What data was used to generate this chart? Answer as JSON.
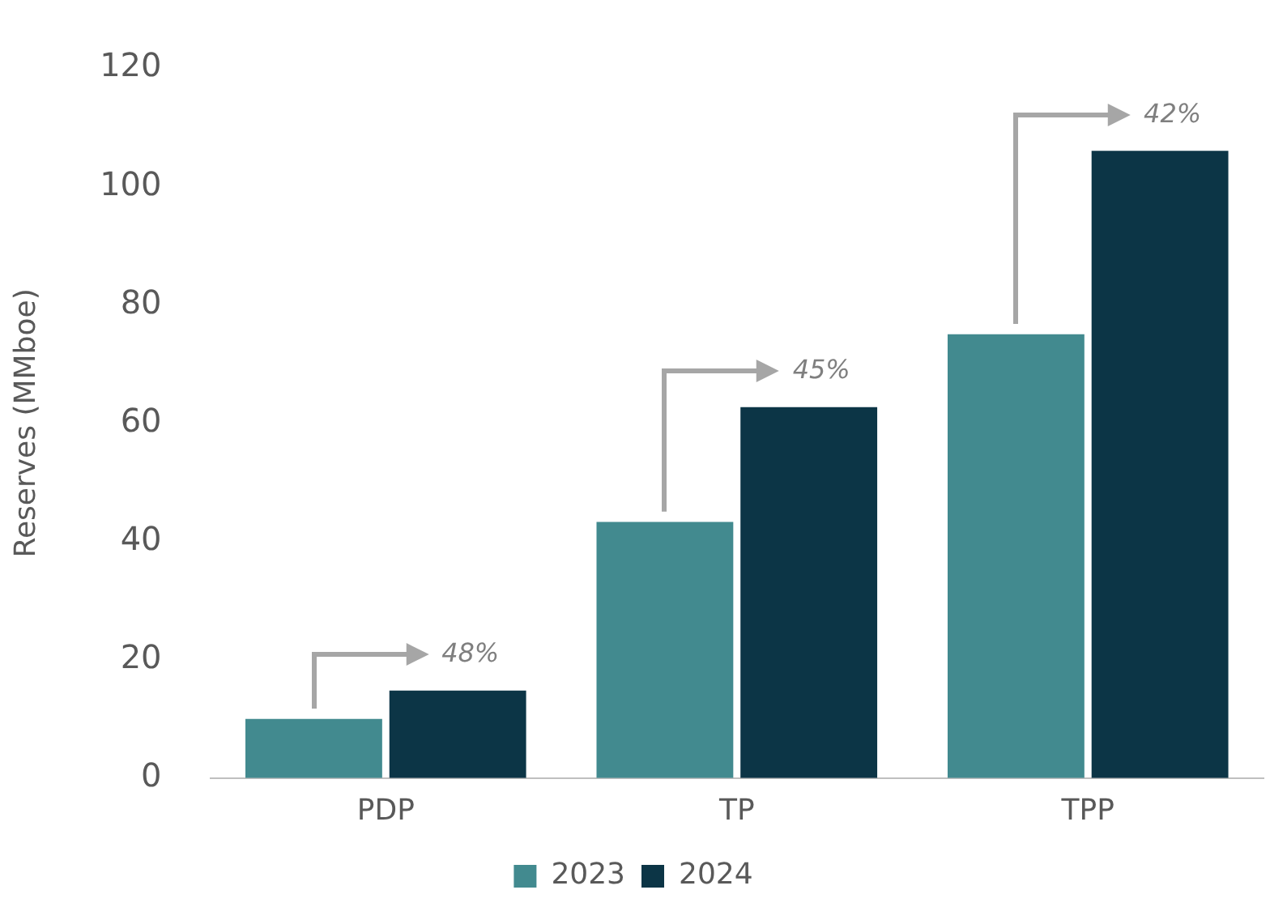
{
  "chart_data": {
    "type": "bar",
    "ylabel": "Reserves (MMboe)",
    "categories": [
      "PDP",
      "TP",
      "TPP"
    ],
    "series": [
      {
        "name": "2023",
        "color": "#428a8f",
        "values": [
          10,
          43.3,
          75
        ]
      },
      {
        "name": "2024",
        "color": "#0c3546",
        "values": [
          14.8,
          62.7,
          106
        ]
      }
    ],
    "ylim": [
      0,
      120
    ],
    "yticks": [
      0,
      20,
      40,
      60,
      80,
      100,
      120
    ],
    "grid": false,
    "legend": "bottom",
    "annotations": [
      "48%",
      "45%",
      "42%"
    ]
  }
}
